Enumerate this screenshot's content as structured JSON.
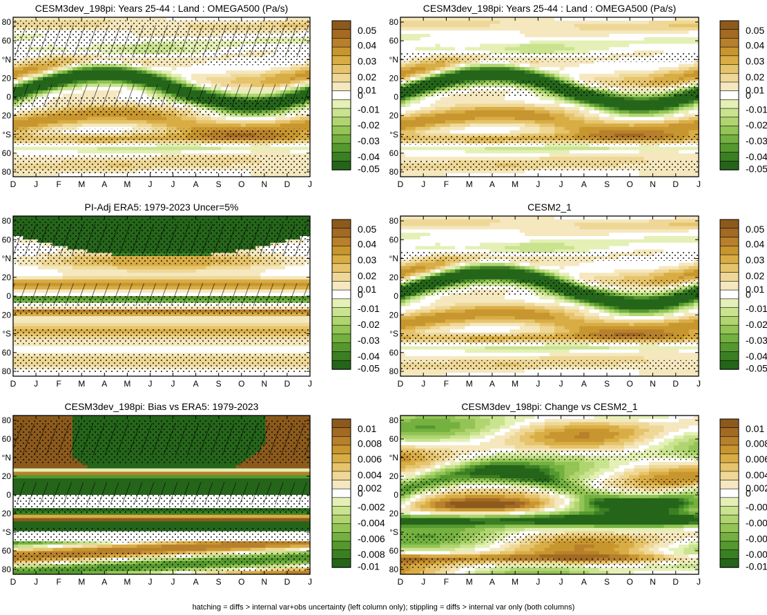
{
  "months": [
    "D",
    "J",
    "F",
    "M",
    "A",
    "M",
    "J",
    "J",
    "A",
    "S",
    "O",
    "N",
    "D",
    "J"
  ],
  "lat_ticks": [
    80,
    60,
    "°N",
    20,
    0,
    20,
    "°S",
    60,
    80
  ],
  "colors_brown_to_green": [
    "#8c5a1c",
    "#a26a22",
    "#b8802c",
    "#c8962f",
    "#d9ad45",
    "#e6c46c",
    "#efd897",
    "#f5e8bf",
    "#ffffff",
    "#e4f0b5",
    "#c9e38f",
    "#b0d570",
    "#93c455",
    "#74b140",
    "#55992e",
    "#3b7f23",
    "#25651a"
  ],
  "footnote": "hatching = diffs > internal var+obs uncertainty (left column only); stippling = diffs > internal var only (both columns)",
  "chart_data": [
    {
      "type": "heatmap",
      "title": "CESM3dev_198pi: Years 25-44 : Land : OMEGA500 (Pa/s)",
      "colorbar_labels": [
        "0.05",
        "0.04",
        "0.03",
        "0.02",
        "0.01",
        "0",
        "-0.01",
        "-0.02",
        "-0.03",
        "-0.04",
        "-0.05"
      ],
      "hatching": true
    },
    {
      "type": "heatmap",
      "title": "CESM3dev_198pi: Years 25-44 : Land : OMEGA500 (Pa/s)",
      "colorbar_labels": [
        "0.05",
        "0.04",
        "0.03",
        "0.02",
        "0.01",
        "0",
        "-0.01",
        "-0.02",
        "-0.03",
        "-0.04",
        "-0.05"
      ],
      "hatching": false
    },
    {
      "type": "heatmap",
      "title": "PI-Adj ERA5: 1979-2023 Uncer=5%",
      "colorbar_labels": [
        "0.05",
        "0.04",
        "0.03",
        "0.02",
        "0.01",
        "0",
        "-0.01",
        "-0.02",
        "-0.03",
        "-0.04",
        "-0.05"
      ],
      "hatching": true
    },
    {
      "type": "heatmap",
      "title": "CESM2_1",
      "colorbar_labels": [
        "0.05",
        "0.04",
        "0.03",
        "0.02",
        "0.01",
        "0",
        "-0.01",
        "-0.02",
        "-0.03",
        "-0.04",
        "-0.05"
      ],
      "hatching": false
    },
    {
      "type": "heatmap",
      "title": "CESM3dev_198pi: Bias vs ERA5: 1979-2023",
      "colorbar_labels": [
        "0.01",
        "0.008",
        "0.006",
        "0.004",
        "0.002",
        "0",
        "-0.002",
        "-0.004",
        "-0.006",
        "-0.008",
        "-0.01"
      ],
      "hatching": true
    },
    {
      "type": "heatmap",
      "title": "CESM3dev_198pi: Change vs CESM2_1",
      "colorbar_labels": [
        "0.01",
        "0.008",
        "0.006",
        "0.004",
        "0.002",
        "0",
        "-0.002",
        "-0.004",
        "-0.006",
        "-0.008",
        "-0.01"
      ],
      "hatching": false
    }
  ]
}
